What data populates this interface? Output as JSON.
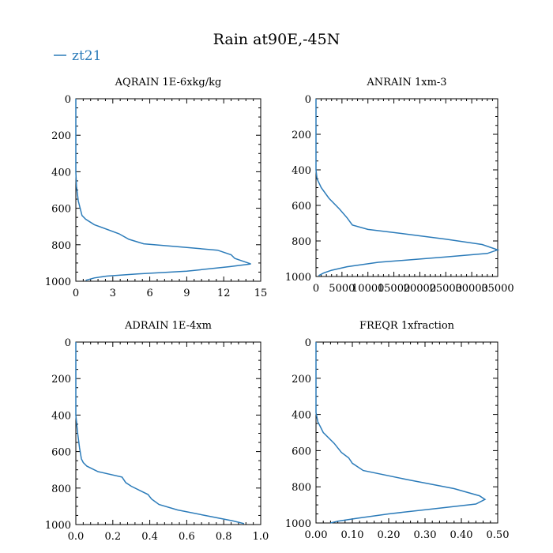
{
  "title": "Rain at90E,-45N",
  "legend": {
    "label": "zt21",
    "color": "#2b7bb9",
    "placement": "top-left"
  },
  "chart_data": [
    {
      "type": "line",
      "title": "AQRAIN  1E-6xkg/kg",
      "xlim": [
        0,
        15
      ],
      "ylim": [
        0,
        1000
      ],
      "y_inverted": true,
      "xticks": [
        "0",
        "3",
        "6",
        "9",
        "12",
        "15"
      ],
      "xtick_values": [
        0,
        3,
        6,
        9,
        12,
        15
      ],
      "yticks": [
        "0",
        "200",
        "400",
        "600",
        "800",
        "1000"
      ],
      "ytick_values": [
        0,
        200,
        400,
        600,
        800,
        1000
      ],
      "series": [
        {
          "name": "zt21",
          "color": "#2b7bb9",
          "x": [
            0,
            0,
            0.05,
            0.2,
            0.5,
            0.8,
            1.5,
            3.5,
            4.3,
            5.5,
            9,
            11.5,
            12.6,
            12.9,
            14.2,
            12.5,
            9,
            5,
            2.5,
            1.5,
            0.8
          ],
          "y": [
            0,
            400,
            480,
            560,
            640,
            660,
            690,
            740,
            770,
            795,
            815,
            830,
            855,
            875,
            905,
            920,
            945,
            960,
            972,
            982,
            995
          ]
        }
      ]
    },
    {
      "type": "line",
      "title": "ANRAIN  1xm-3",
      "xlim": [
        0,
        35000
      ],
      "ylim": [
        0,
        1000
      ],
      "y_inverted": true,
      "xticks": [
        "0",
        "5000",
        "10000",
        "15000",
        "20000",
        "25000",
        "30000",
        "35000"
      ],
      "xtick_values": [
        0,
        5000,
        10000,
        15000,
        20000,
        25000,
        30000,
        35000
      ],
      "yticks": [
        "0",
        "200",
        "400",
        "600",
        "800",
        "1000"
      ],
      "ytick_values": [
        0,
        200,
        400,
        600,
        800,
        1000
      ],
      "series": [
        {
          "name": "zt21",
          "color": "#2b7bb9",
          "x": [
            0,
            0,
            200,
            1000,
            2500,
            4500,
            6000,
            7000,
            10000,
            17000,
            25000,
            32000,
            35000,
            33000,
            25000,
            12000,
            6000,
            3000,
            1500,
            500
          ],
          "y": [
            0,
            400,
            450,
            500,
            560,
            620,
            670,
            710,
            735,
            760,
            790,
            820,
            850,
            870,
            890,
            920,
            945,
            965,
            980,
            995
          ]
        }
      ]
    },
    {
      "type": "line",
      "title": "ADRAIN  1E-4xm",
      "xlim": [
        0,
        1.0
      ],
      "ylim": [
        0,
        1000
      ],
      "y_inverted": true,
      "xticks": [
        "0.0",
        "0.2",
        "0.4",
        "0.6",
        "0.8",
        "1.0"
      ],
      "xtick_values": [
        0,
        0.2,
        0.4,
        0.6,
        0.8,
        1.0
      ],
      "yticks": [
        "0",
        "200",
        "400",
        "600",
        "800",
        "1000"
      ],
      "ytick_values": [
        0,
        200,
        400,
        600,
        800,
        1000
      ],
      "series": [
        {
          "name": "zt21",
          "color": "#2b7bb9",
          "x": [
            0,
            0,
            0.01,
            0.02,
            0.03,
            0.04,
            0.06,
            0.12,
            0.25,
            0.27,
            0.3,
            0.36,
            0.39,
            0.41,
            0.45,
            0.55,
            0.7,
            0.85,
            0.91
          ],
          "y": [
            0,
            400,
            500,
            580,
            640,
            660,
            680,
            710,
            740,
            770,
            790,
            820,
            835,
            860,
            890,
            920,
            950,
            980,
            995
          ]
        }
      ]
    },
    {
      "type": "line",
      "title": "FREQR  1xfraction",
      "xlim": [
        0,
        0.5
      ],
      "ylim": [
        0,
        1000
      ],
      "y_inverted": true,
      "xticks": [
        "0.00",
        "0.10",
        "0.20",
        "0.30",
        "0.40",
        "0.50"
      ],
      "xtick_values": [
        0,
        0.1,
        0.2,
        0.3,
        0.4,
        0.5
      ],
      "yticks": [
        "0",
        "200",
        "400",
        "600",
        "800",
        "1000"
      ],
      "ytick_values": [
        0,
        200,
        400,
        600,
        800,
        1000
      ],
      "series": [
        {
          "name": "zt21",
          "color": "#2b7bb9",
          "x": [
            0,
            0,
            0.005,
            0.02,
            0.05,
            0.07,
            0.09,
            0.1,
            0.13,
            0.25,
            0.38,
            0.45,
            0.465,
            0.44,
            0.33,
            0.2,
            0.11,
            0.06,
            0.04
          ],
          "y": [
            0,
            390,
            440,
            500,
            560,
            610,
            640,
            670,
            710,
            760,
            810,
            850,
            870,
            895,
            920,
            950,
            975,
            990,
            1000
          ]
        }
      ]
    }
  ]
}
